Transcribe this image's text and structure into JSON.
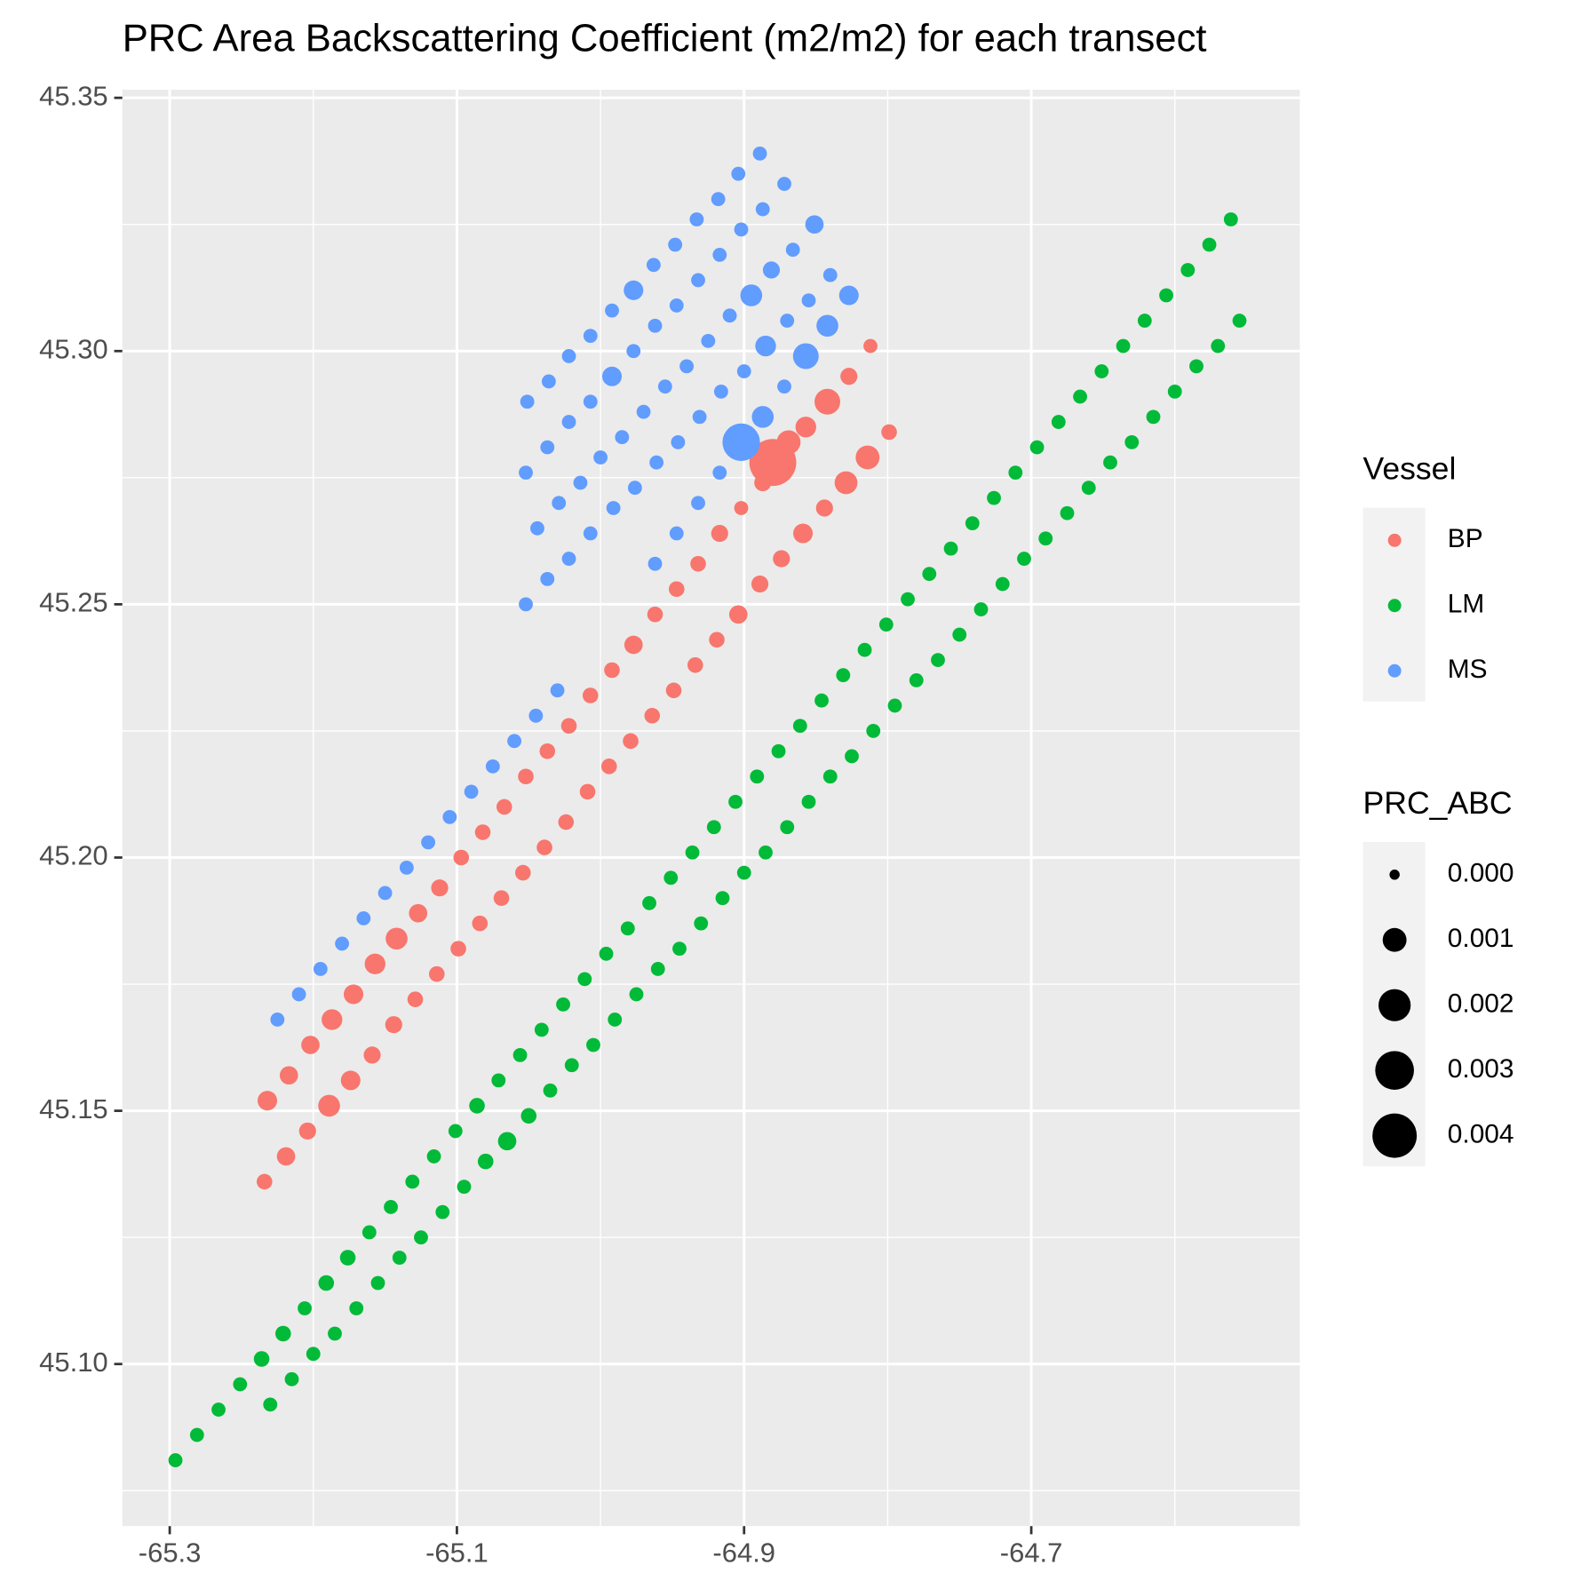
{
  "chart_data": {
    "type": "scatter",
    "title": "PRC Area Backscattering Coefficient (m2/m2) for each transect",
    "legend_title": "Vessel",
    "size_title": "PRC_ABC",
    "size_lim": [
      0,
      0.0045
    ],
    "size_breaks": [
      {
        "value": 0,
        "label": "0.000"
      },
      {
        "value": 0.001,
        "label": "0.001"
      },
      {
        "value": 0.002,
        "label": "0.002"
      },
      {
        "value": 0.003,
        "label": "0.003"
      },
      {
        "value": 0.004,
        "label": "0.004"
      }
    ],
    "xlim": [
      -65.333,
      -64.513
    ],
    "ylim": [
      45.068,
      45.3516
    ],
    "xticks": [
      -65.3,
      -65.1,
      -64.9,
      -64.7
    ],
    "yticks": [
      {
        "value": 45.1,
        "label": "45.10"
      },
      45.15,
      {
        "value": 45.2,
        "label": "45.20"
      },
      45.25,
      {
        "value": 45.3,
        "label": "45.30"
      },
      45.35
    ],
    "grid": true,
    "series": [
      {
        "name": "BP",
        "color": "#F8766D",
        "x": [
          -65.232,
          -65.217,
          -65.202,
          -65.187,
          -65.172,
          -65.157,
          -65.142,
          -65.127,
          -65.112,
          -65.097,
          -65.082,
          -65.067,
          -65.052,
          -65.037,
          -65.022,
          -65.007,
          -64.992,
          -64.977,
          -64.962,
          -64.947,
          -64.932,
          -64.917,
          -64.902,
          -64.887,
          -64.872,
          -64.857,
          -64.842,
          -64.827,
          -64.812,
          -65.234,
          -65.219,
          -65.204,
          -65.189,
          -65.174,
          -65.159,
          -65.144,
          -65.129,
          -65.114,
          -65.099,
          -65.084,
          -65.069,
          -65.054,
          -65.039,
          -65.024,
          -65.009,
          -64.994,
          -64.979,
          -64.964,
          -64.949,
          -64.934,
          -64.919,
          -64.904,
          -64.889,
          -64.874,
          -64.859,
          -64.844,
          -64.829,
          -64.814,
          -64.799,
          -64.869,
          -64.88
        ],
        "values": [
          45.152,
          45.157,
          45.163,
          45.168,
          45.173,
          45.179,
          45.184,
          45.189,
          45.194,
          45.2,
          45.205,
          45.21,
          45.216,
          45.221,
          45.226,
          45.232,
          45.237,
          45.242,
          45.248,
          45.253,
          45.258,
          45.264,
          45.269,
          45.274,
          45.279,
          45.285,
          45.29,
          45.295,
          45.301,
          45.136,
          45.141,
          45.146,
          45.151,
          45.156,
          45.161,
          45.167,
          45.172,
          45.177,
          45.182,
          45.187,
          45.192,
          45.197,
          45.202,
          45.207,
          45.213,
          45.218,
          45.223,
          45.228,
          45.233,
          45.238,
          45.243,
          45.248,
          45.254,
          45.259,
          45.264,
          45.269,
          45.274,
          45.279,
          45.284,
          45.282,
          45.278
        ],
        "sizes": [
          0.0006,
          0.0005,
          0.0005,
          0.0007,
          0.0006,
          0.0007,
          0.0008,
          0.0005,
          0.0004,
          0.0003,
          0.0003,
          0.0003,
          0.0003,
          0.0003,
          0.0003,
          0.0003,
          0.0003,
          0.0005,
          0.0003,
          0.0003,
          0.0003,
          0.0004,
          0.0002,
          0.0004,
          0.0008,
          0.0007,
          0.0012,
          0.0004,
          0.0002,
          0.0003,
          0.0005,
          0.0004,
          0.0008,
          0.0006,
          0.0004,
          0.0004,
          0.0003,
          0.0003,
          0.0003,
          0.0003,
          0.0003,
          0.0003,
          0.0003,
          0.0003,
          0.0003,
          0.0003,
          0.0003,
          0.0003,
          0.0003,
          0.0003,
          0.0003,
          0.0005,
          0.0004,
          0.0004,
          0.0006,
          0.0004,
          0.0009,
          0.001,
          0.0003,
          0.001,
          0.0045
        ]
      },
      {
        "name": "LM",
        "color": "#00BA38",
        "x": [
          -65.296,
          -65.281,
          -65.266,
          -65.251,
          -65.236,
          -65.221,
          -65.206,
          -65.191,
          -65.176,
          -65.161,
          -65.146,
          -65.131,
          -65.116,
          -65.101,
          -65.086,
          -65.071,
          -65.056,
          -65.041,
          -65.026,
          -65.011,
          -64.996,
          -64.981,
          -64.966,
          -64.951,
          -64.936,
          -64.921,
          -64.906,
          -64.891,
          -64.876,
          -64.861,
          -64.846,
          -64.831,
          -64.816,
          -64.801,
          -64.786,
          -64.771,
          -64.756,
          -64.741,
          -64.726,
          -64.711,
          -64.696,
          -64.681,
          -64.666,
          -64.651,
          -64.636,
          -64.621,
          -64.606,
          -64.591,
          -64.576,
          -64.561,
          -65.23,
          -65.215,
          -65.2,
          -65.185,
          -65.17,
          -65.155,
          -65.14,
          -65.125,
          -65.11,
          -65.095,
          -65.08,
          -65.065,
          -65.05,
          -65.035,
          -65.02,
          -65.005,
          -64.99,
          -64.975,
          -64.96,
          -64.945,
          -64.93,
          -64.915,
          -64.9,
          -64.885,
          -64.87,
          -64.855,
          -64.84,
          -64.825,
          -64.81,
          -64.795,
          -64.78,
          -64.765,
          -64.75,
          -64.735,
          -64.72,
          -64.705,
          -64.69,
          -64.675,
          -64.66,
          -64.645,
          -64.63,
          -64.615,
          -64.6,
          -64.585,
          -64.57,
          -64.555
        ],
        "values": [
          45.081,
          45.086,
          45.091,
          45.096,
          45.101,
          45.106,
          45.111,
          45.116,
          45.121,
          45.126,
          45.131,
          45.136,
          45.141,
          45.146,
          45.151,
          45.156,
          45.161,
          45.166,
          45.171,
          45.176,
          45.181,
          45.186,
          45.191,
          45.196,
          45.201,
          45.206,
          45.211,
          45.216,
          45.221,
          45.226,
          45.231,
          45.236,
          45.241,
          45.246,
          45.251,
          45.256,
          45.261,
          45.266,
          45.271,
          45.276,
          45.281,
          45.286,
          45.291,
          45.296,
          45.301,
          45.306,
          45.311,
          45.316,
          45.321,
          45.326,
          45.092,
          45.097,
          45.102,
          45.106,
          45.111,
          45.116,
          45.121,
          45.125,
          45.13,
          45.135,
          45.14,
          45.144,
          45.149,
          45.154,
          45.159,
          45.163,
          45.168,
          45.173,
          45.178,
          45.182,
          45.187,
          45.192,
          45.197,
          45.201,
          45.206,
          45.211,
          45.216,
          45.22,
          45.225,
          45.23,
          45.235,
          45.239,
          45.244,
          45.249,
          45.254,
          45.259,
          45.263,
          45.268,
          45.273,
          45.278,
          45.282,
          45.287,
          45.292,
          45.297,
          45.301,
          45.306
        ],
        "sizes": [
          0.0002,
          0.0002,
          0.0002,
          0.0002,
          0.0003,
          0.0003,
          0.0002,
          0.0003,
          0.0003,
          0.0002,
          0.0002,
          0.0002,
          0.0002,
          0.0002,
          0.0003,
          0.0002,
          0.0002,
          0.0002,
          0.0002,
          0.0002,
          0.0002,
          0.0002,
          0.0002,
          0.0002,
          0.0002,
          0.0002,
          0.0002,
          0.0002,
          0.0002,
          0.0002,
          0.0002,
          0.0002,
          0.0002,
          0.0002,
          0.0002,
          0.0002,
          0.0002,
          0.0002,
          0.0002,
          0.0002,
          0.0002,
          0.0002,
          0.0002,
          0.0002,
          0.0002,
          0.0002,
          0.0002,
          0.0002,
          0.0002,
          0.0002,
          0.0002,
          0.0002,
          0.0002,
          0.0002,
          0.0002,
          0.0002,
          0.0002,
          0.0002,
          0.0002,
          0.0002,
          0.0003,
          0.0005,
          0.0003,
          0.0002,
          0.0002,
          0.0002,
          0.0002,
          0.0002,
          0.0002,
          0.0002,
          0.0002,
          0.0002,
          0.0002,
          0.0002,
          0.0002,
          0.0002,
          0.0002,
          0.0002,
          0.0002,
          0.0002,
          0.0002,
          0.0002,
          0.0002,
          0.0002,
          0.0002,
          0.0002,
          0.0002,
          0.0002,
          0.0002,
          0.0002,
          0.0002,
          0.0002,
          0.0002,
          0.0002,
          0.0002,
          0.0002
        ]
      },
      {
        "name": "MS",
        "color": "#619CFF",
        "x": [
          -65.225,
          -65.21,
          -65.195,
          -65.18,
          -65.165,
          -65.15,
          -65.135,
          -65.12,
          -65.105,
          -65.09,
          -65.075,
          -65.06,
          -65.045,
          -65.03,
          -65.051,
          -65.036,
          -65.022,
          -65.007,
          -64.992,
          -64.977,
          -64.963,
          -64.948,
          -64.933,
          -64.918,
          -64.904,
          -64.889,
          -65.052,
          -65.037,
          -65.022,
          -65.007,
          -64.992,
          -64.977,
          -64.962,
          -64.947,
          -64.932,
          -64.917,
          -64.902,
          -64.887,
          -64.872,
          -65.044,
          -65.029,
          -65.014,
          -65.0,
          -64.985,
          -64.97,
          -64.955,
          -64.94,
          -64.925,
          -64.91,
          -64.895,
          -64.881,
          -64.866,
          -64.851,
          -65.052,
          -65.037,
          -65.022,
          -65.007,
          -64.991,
          -64.976,
          -64.961,
          -64.946,
          -64.931,
          -64.916,
          -64.9,
          -64.885,
          -64.87,
          -64.855,
          -64.84,
          -64.962,
          -64.947,
          -64.932,
          -64.917,
          -64.902,
          -64.887,
          -64.872,
          -64.857,
          -64.842,
          -64.827
        ],
        "values": [
          45.168,
          45.173,
          45.178,
          45.183,
          45.188,
          45.193,
          45.198,
          45.203,
          45.208,
          45.213,
          45.218,
          45.223,
          45.228,
          45.233,
          45.29,
          45.294,
          45.299,
          45.303,
          45.308,
          45.312,
          45.317,
          45.321,
          45.326,
          45.33,
          45.335,
          45.339,
          45.276,
          45.281,
          45.286,
          45.29,
          45.295,
          45.3,
          45.305,
          45.309,
          45.314,
          45.319,
          45.324,
          45.328,
          45.333,
          45.265,
          45.27,
          45.274,
          45.279,
          45.283,
          45.288,
          45.293,
          45.297,
          45.302,
          45.307,
          45.311,
          45.316,
          45.32,
          45.325,
          45.25,
          45.255,
          45.259,
          45.264,
          45.269,
          45.273,
          45.278,
          45.282,
          45.287,
          45.292,
          45.296,
          45.301,
          45.306,
          45.31,
          45.315,
          45.258,
          45.264,
          45.27,
          45.276,
          45.282,
          45.287,
          45.293,
          45.299,
          45.305,
          45.311
        ],
        "sizes": [
          0.0002,
          0.0002,
          0.0002,
          0.0002,
          0.0002,
          0.0002,
          0.0002,
          0.0002,
          0.0002,
          0.0002,
          0.0002,
          0.0002,
          0.0002,
          0.0002,
          0.0002,
          0.0002,
          0.0002,
          0.0002,
          0.0002,
          0.0006,
          0.0002,
          0.0002,
          0.0002,
          0.0002,
          0.0002,
          0.0002,
          0.0002,
          0.0002,
          0.0002,
          0.0002,
          0.0006,
          0.0002,
          0.0002,
          0.0002,
          0.0002,
          0.0002,
          0.0002,
          0.0002,
          0.0002,
          0.0002,
          0.0002,
          0.0002,
          0.0002,
          0.0002,
          0.0002,
          0.0002,
          0.0002,
          0.0002,
          0.0002,
          0.0008,
          0.0004,
          0.0002,
          0.0005,
          0.0002,
          0.0002,
          0.0002,
          0.0002,
          0.0002,
          0.0002,
          0.0002,
          0.0002,
          0.0002,
          0.0002,
          0.0002,
          0.0007,
          0.0002,
          0.0002,
          0.0002,
          0.0002,
          0.0002,
          0.0002,
          0.0002,
          0.0028,
          0.0008,
          0.0002,
          0.0012,
          0.0008,
          0.0006
        ]
      }
    ]
  }
}
